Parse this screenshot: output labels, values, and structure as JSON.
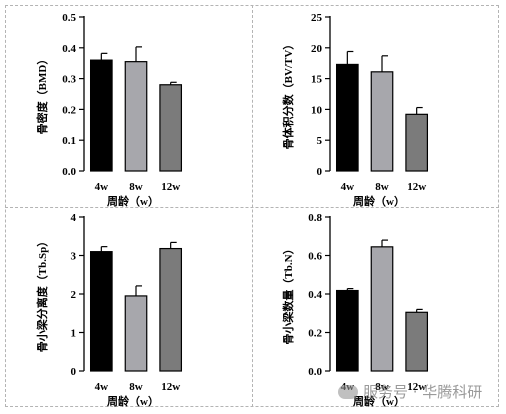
{
  "chart_data": [
    {
      "type": "bar",
      "categories": [
        "4w",
        "8w",
        "12w"
      ],
      "values": [
        0.36,
        0.355,
        0.28
      ],
      "errors": [
        0.022,
        0.048,
        0.008
      ],
      "ylabel": "骨密度（BMD）",
      "xlabel": "周龄（w）",
      "ylim": [
        0,
        0.5
      ],
      "yticks": [
        0.0,
        0.1,
        0.2,
        0.3,
        0.4,
        0.5
      ],
      "ytick_labels": [
        "0.0",
        "0.1",
        "0.2",
        "0.3",
        "0.4",
        "0.5"
      ],
      "colors": [
        "#000000",
        "#a7a7ac",
        "#7b7b7b"
      ]
    },
    {
      "type": "bar",
      "categories": [
        "4w",
        "8w",
        "12w"
      ],
      "values": [
        17.3,
        16.1,
        9.2
      ],
      "errors": [
        2.1,
        2.6,
        1.1
      ],
      "ylabel": "骨体积分数（BV/TV）",
      "xlabel": "周龄（w）",
      "ylim": [
        0,
        25
      ],
      "yticks": [
        0,
        5,
        10,
        15,
        20,
        25
      ],
      "ytick_labels": [
        "0",
        "5",
        "10",
        "15",
        "20",
        "25"
      ],
      "colors": [
        "#000000",
        "#a7a7ac",
        "#7b7b7b"
      ]
    },
    {
      "type": "bar",
      "categories": [
        "4w",
        "8w",
        "12w"
      ],
      "values": [
        3.1,
        1.95,
        3.18
      ],
      "errors": [
        0.13,
        0.26,
        0.16
      ],
      "ylabel": "骨小梁分离度（Tb.Sp）",
      "xlabel": "周龄（w）",
      "ylim": [
        0,
        4
      ],
      "yticks": [
        0,
        1,
        2,
        3,
        4
      ],
      "ytick_labels": [
        "0",
        "1",
        "2",
        "3",
        "4"
      ],
      "colors": [
        "#000000",
        "#a7a7ac",
        "#7b7b7b"
      ]
    },
    {
      "type": "bar",
      "categories": [
        "4w",
        "8w",
        "12w"
      ],
      "values": [
        0.418,
        0.645,
        0.305
      ],
      "errors": [
        0.01,
        0.035,
        0.015
      ],
      "ylabel": "骨小梁数量（Tb.N）",
      "xlabel": "周龄（w）",
      "ylim": [
        0,
        0.8
      ],
      "yticks": [
        0.0,
        0.2,
        0.4,
        0.6,
        0.8
      ],
      "ytick_labels": [
        "0.0",
        "0.2",
        "0.4",
        "0.6",
        "0.8"
      ],
      "colors": [
        "#000000",
        "#a7a7ac",
        "#7b7b7b"
      ]
    }
  ],
  "watermark": {
    "icon": "wechat-icon",
    "text": "服务号 · 华腾科研"
  }
}
